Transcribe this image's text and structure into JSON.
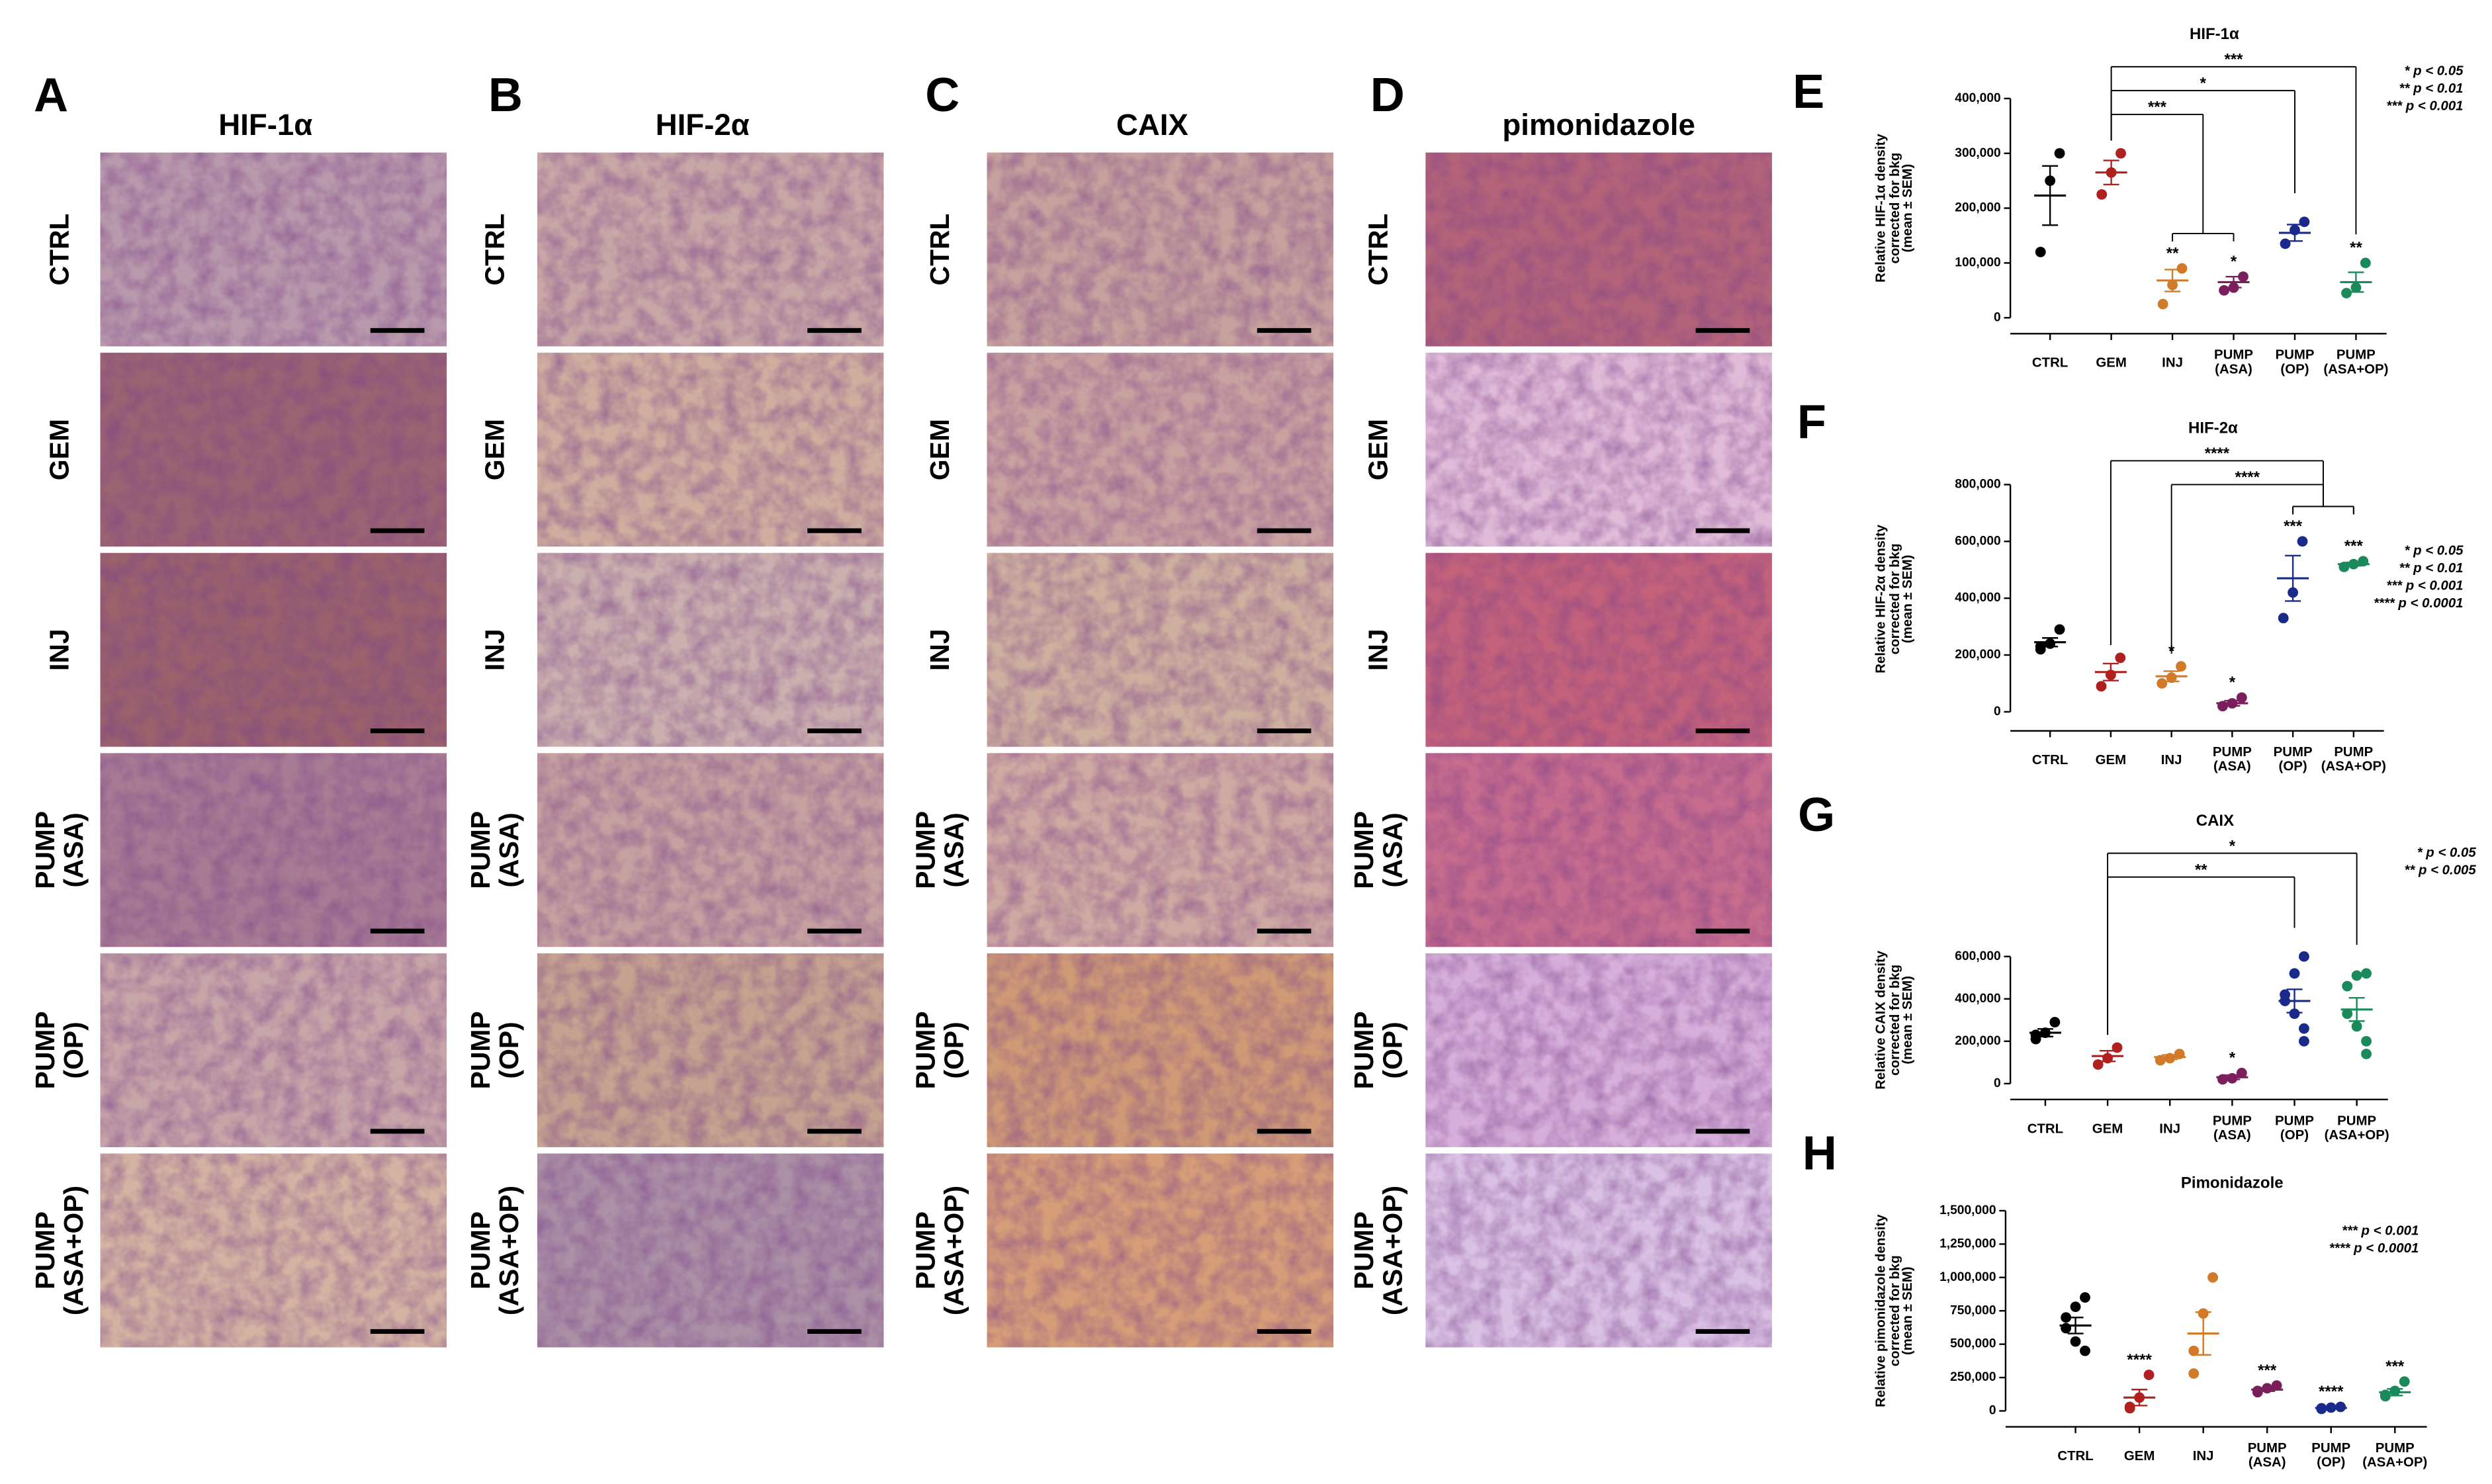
{
  "panels": {
    "rows": [
      "CTRL",
      "GEM",
      "INJ",
      "PUMP\n(ASA)",
      "PUMP\n(OP)",
      "PUMP\n(ASA+OP)"
    ],
    "columns": [
      {
        "letter": "A",
        "stain": "HIF-1α"
      },
      {
        "letter": "B",
        "stain": "HIF-2α"
      },
      {
        "letter": "C",
        "stain": "CAIX"
      },
      {
        "letter": "D",
        "stain": "pimonidazole"
      }
    ]
  },
  "chart_data": [
    {
      "type": "dotplot",
      "panel": "E",
      "title": "HIF-1α",
      "y_label": "Relative HIF-1α density\ncorrected for bkg\n(mean ± SEM)",
      "categories": [
        "CTRL",
        "GEM",
        "INJ",
        "PUMP\n(ASA)",
        "PUMP\n(OP)",
        "PUMP\n(ASA+OP)"
      ],
      "ylim": [
        0,
        400000
      ],
      "yticks": [
        0,
        {
          "value": 100000,
          "label": "100,000"
        },
        {
          "value": 200000,
          "label": "200,000"
        },
        {
          "value": 300000,
          "label": "300,000"
        },
        {
          "value": 400000,
          "label": "400,000"
        }
      ],
      "groups": [
        {
          "color": "#000000",
          "points": [
            300000,
            250000,
            120000
          ],
          "mean": 223000,
          "sem": 54000
        },
        {
          "color": "#b0201e",
          "points": [
            300000,
            265000,
            225000
          ],
          "mean": 265000,
          "sem": 22000
        },
        {
          "color": "#d07a2a",
          "points": [
            90000,
            60000,
            25000
          ],
          "mean": 68000,
          "sem": 20000,
          "star": "**"
        },
        {
          "color": "#7a1f5c",
          "points": [
            75000,
            55000,
            50000
          ],
          "mean": 65000,
          "sem": 10000,
          "star": "*"
        },
        {
          "color": "#1a2a8a",
          "points": [
            175000,
            160000,
            135000
          ],
          "mean": 155000,
          "sem": 15000
        },
        {
          "color": "#1a8a5a",
          "points": [
            100000,
            55000,
            45000
          ],
          "mean": 65000,
          "sem": 18000,
          "star": "**"
        }
      ],
      "brackets": [
        {
          "label": "***",
          "from": 1,
          "to": [
            5
          ]
        },
        {
          "label": "*",
          "from": 1,
          "to": [
            4
          ]
        },
        {
          "label": "***",
          "from": 1,
          "to": [
            2,
            3
          ]
        }
      ],
      "key": [
        "* p < 0.05",
        "** p < 0.01",
        "*** p < 0.001"
      ]
    },
    {
      "type": "dotplot",
      "panel": "F",
      "title": "HIF-2α",
      "y_label": "Relative HIF-2α density\ncorrected for bkg\n(mean ± SEM)",
      "categories": [
        "CTRL",
        "GEM",
        "INJ",
        "PUMP\n(ASA)",
        "PUMP\n(OP)",
        "PUMP\n(ASA+OP)"
      ],
      "ylim": [
        0,
        800000
      ],
      "yticks": [
        0,
        {
          "value": 200000,
          "label": "200,000"
        },
        {
          "value": 400000,
          "label": "400,000"
        },
        {
          "value": 600000,
          "label": "600,000"
        },
        {
          "value": 800000,
          "label": "800,000"
        }
      ],
      "groups": [
        {
          "color": "#000000",
          "points": [
            290000,
            240000,
            230000,
            220000
          ],
          "mean": 245000,
          "sem": 15000
        },
        {
          "color": "#b0201e",
          "points": [
            190000,
            130000,
            90000
          ],
          "mean": 140000,
          "sem": 30000
        },
        {
          "color": "#d07a2a",
          "points": [
            160000,
            120000,
            100000
          ],
          "mean": 125000,
          "sem": 18000,
          "star": "*"
        },
        {
          "color": "#7a1f5c",
          "points": [
            50000,
            30000,
            20000
          ],
          "mean": 30000,
          "sem": 9000,
          "star": "*"
        },
        {
          "color": "#1a2a8a",
          "points": [
            600000,
            420000,
            330000
          ],
          "mean": 470000,
          "sem": 80000,
          "star": "***"
        },
        {
          "color": "#1a8a5a",
          "points": [
            530000,
            520000,
            510000
          ],
          "mean": 520000,
          "sem": 6000,
          "star": "***"
        }
      ],
      "brackets": [
        {
          "label": "****",
          "from": 1,
          "to": [
            4,
            5
          ]
        },
        {
          "label": "****",
          "from": 2,
          "to": [
            4,
            5
          ]
        }
      ],
      "key": [
        "* p < 0.05",
        "** p < 0.01",
        "*** p < 0.001",
        "**** p < 0.0001"
      ]
    },
    {
      "type": "dotplot",
      "panel": "G",
      "title": "CAIX",
      "y_label": "Relative CAIX density\ncorrected for bkg\n(mean ± SEM)",
      "categories": [
        "CTRL",
        "GEM",
        "INJ",
        "PUMP\n(ASA)",
        "PUMP\n(OP)",
        "PUMP\n(ASA+OP)"
      ],
      "ylim": [
        0,
        600000
      ],
      "yticks": [
        0,
        {
          "value": 200000,
          "label": "200,000"
        },
        {
          "value": 400000,
          "label": "400,000"
        },
        {
          "value": 600000,
          "label": "600,000"
        }
      ],
      "groups": [
        {
          "color": "#000000",
          "points": [
            290000,
            240000,
            230000,
            210000
          ],
          "mean": 240000,
          "sem": 18000
        },
        {
          "color": "#b0201e",
          "points": [
            170000,
            120000,
            90000
          ],
          "mean": 130000,
          "sem": 25000
        },
        {
          "color": "#d07a2a",
          "points": [
            140000,
            120000,
            110000
          ],
          "mean": 125000,
          "sem": 10000
        },
        {
          "color": "#7a1f5c",
          "points": [
            50000,
            25000,
            20000
          ],
          "mean": 30000,
          "sem": 10000,
          "star": "*"
        },
        {
          "color": "#1a2a8a",
          "points": [
            600000,
            520000,
            420000,
            390000,
            330000,
            260000,
            200000
          ],
          "mean": 390000,
          "sem": 55000
        },
        {
          "color": "#1a8a5a",
          "points": [
            520000,
            510000,
            460000,
            330000,
            270000,
            200000,
            140000
          ],
          "mean": 350000,
          "sem": 55000
        }
      ],
      "brackets": [
        {
          "label": "*",
          "from": 1,
          "to": [
            5
          ]
        },
        {
          "label": "**",
          "from": 1,
          "to": [
            4
          ]
        }
      ],
      "key": [
        "* p < 0.05",
        "** p < 0.005"
      ]
    },
    {
      "type": "dotplot",
      "panel": "H",
      "title": "Pimonidazole",
      "y_label": "Relative pimonidazole density\ncorrected for bkg\n(mean ± SEM)",
      "categories": [
        "CTRL",
        "GEM",
        "INJ",
        "PUMP\n(ASA)",
        "PUMP\n(OP)",
        "PUMP\n(ASA+OP)"
      ],
      "ylim": [
        0,
        1500000
      ],
      "yticks": [
        0,
        {
          "value": 250000,
          "label": "250,000"
        },
        {
          "value": 500000,
          "label": "500,000"
        },
        {
          "value": 750000,
          "label": "750,000"
        },
        {
          "value": 1000000,
          "label": "1,000,000"
        },
        {
          "value": 1250000,
          "label": "1,250,000"
        },
        {
          "value": 1500000,
          "label": "1,500,000"
        }
      ],
      "groups": [
        {
          "color": "#000000",
          "points": [
            850000,
            780000,
            700000,
            620000,
            520000,
            450000
          ],
          "mean": 640000,
          "sem": 60000
        },
        {
          "color": "#b0201e",
          "points": [
            270000,
            100000,
            30000,
            20000
          ],
          "mean": 100000,
          "sem": 60000,
          "star": "****"
        },
        {
          "color": "#d07a2a",
          "points": [
            1000000,
            730000,
            450000,
            280000
          ],
          "mean": 580000,
          "sem": 160000
        },
        {
          "color": "#7a1f5c",
          "points": [
            190000,
            170000,
            150000,
            140000
          ],
          "mean": 160000,
          "sem": 12000,
          "star": "***"
        },
        {
          "color": "#1a2a8a",
          "points": [
            30000,
            25000,
            20000,
            15000
          ],
          "mean": 22000,
          "sem": 4000,
          "star": "****"
        },
        {
          "color": "#1a8a5a",
          "points": [
            220000,
            150000,
            120000,
            110000
          ],
          "mean": 140000,
          "sem": 25000,
          "star": "***"
        }
      ],
      "brackets": [],
      "key": [
        "*** p < 0.001",
        "**** p < 0.0001"
      ]
    }
  ]
}
